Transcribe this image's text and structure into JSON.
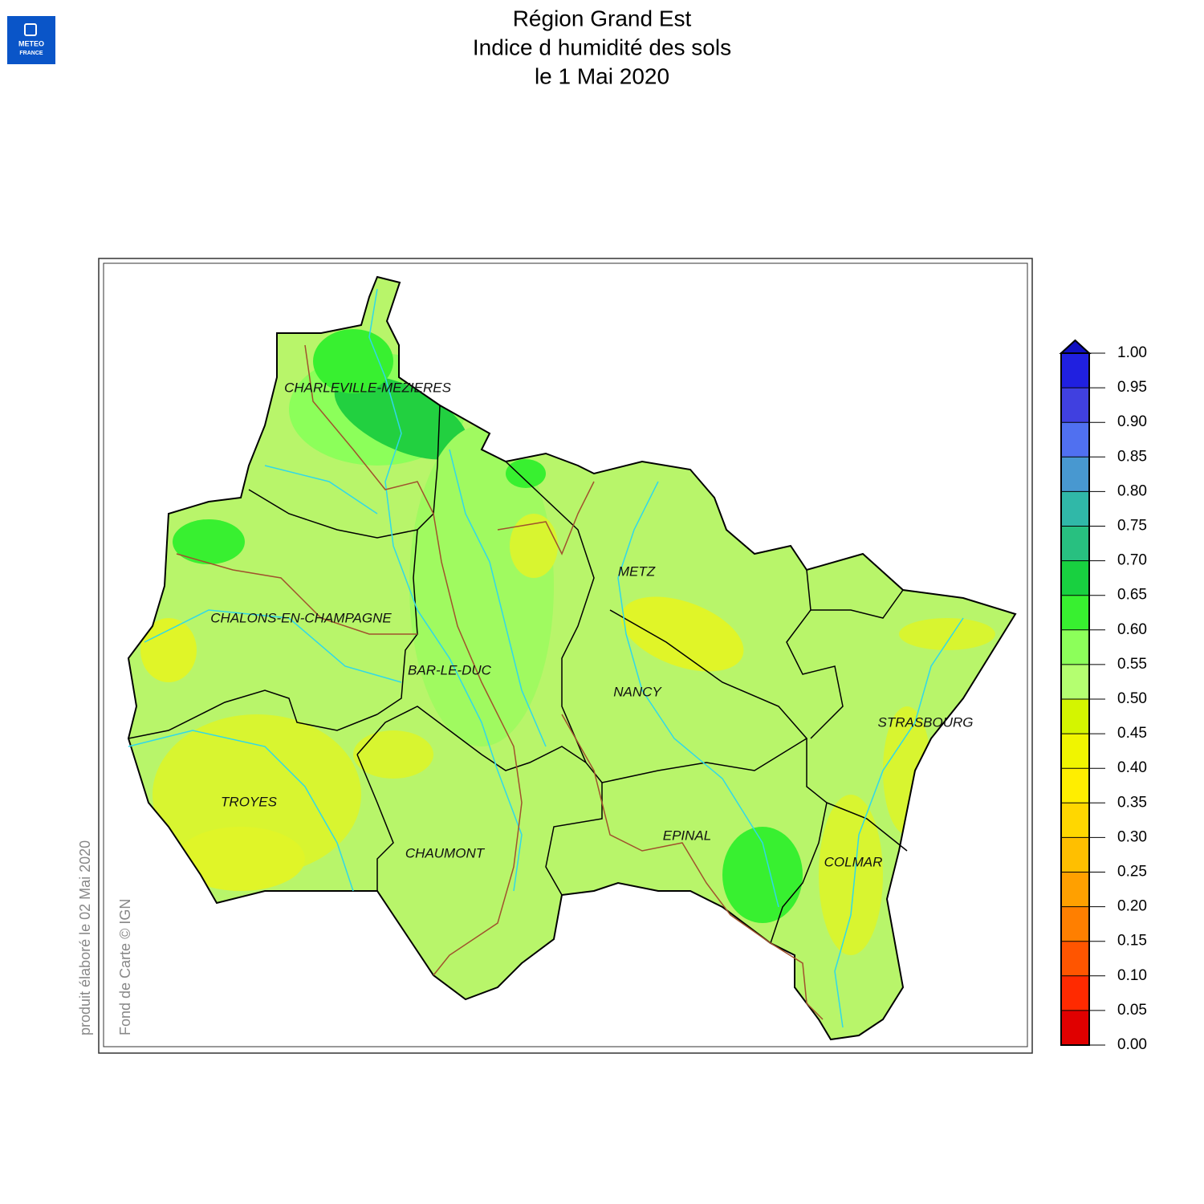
{
  "logo": [
    "METEO",
    "FRANCE"
  ],
  "header": {
    "title": [
      "Région Grand Est",
      "Indice d humidité des sols",
      "le 1 Mai 2020"
    ]
  },
  "map": {
    "cities": [
      "CHARLEVILLE-MEZIERES",
      "METZ",
      "CHALONS-EN-CHAMPAGNE",
      "BAR-LE-DUC",
      "NANCY",
      "STRASBOURG",
      "TROYES",
      "EPINAL",
      "CHAUMONT",
      "COLMAR"
    ]
  },
  "legend": {
    "ticks": [
      {
        "value": 0,
        "label": "0.00"
      },
      {
        "value": 0.05,
        "label": "0.05"
      },
      {
        "value": 0.1,
        "label": "0.10"
      },
      {
        "value": 0.15,
        "label": "0.15"
      },
      {
        "value": 0.2,
        "label": "0.20"
      },
      {
        "value": 0.25,
        "label": "0.25"
      },
      {
        "value": 0.3,
        "label": "0.30"
      },
      {
        "value": 0.35,
        "label": "0.35"
      },
      {
        "value": 0.4,
        "label": "0.40"
      },
      {
        "value": 0.45,
        "label": "0.45"
      },
      {
        "value": 0.5,
        "label": "0.50"
      },
      {
        "value": 0.55,
        "label": "0.55"
      },
      {
        "value": 0.6,
        "label": "0.60"
      },
      {
        "value": 0.65,
        "label": "0.65"
      },
      {
        "value": 0.7,
        "label": "0.70"
      },
      {
        "value": 0.75,
        "label": "0.75"
      },
      {
        "value": 0.8,
        "label": "0.80"
      },
      {
        "value": 0.85,
        "label": "0.85"
      },
      {
        "value": 0.9,
        "label": "0.90"
      },
      {
        "value": 0.95,
        "label": "0.95"
      },
      {
        "value": 1,
        "label": "1.00"
      }
    ],
    "colors": [
      "#e00000",
      "#ff2a00",
      "#ff5500",
      "#ff7f00",
      "#ffa000",
      "#ffbf00",
      "#ffd700",
      "#ffee00",
      "#f0f500",
      "#d4f500",
      "#b4ff70",
      "#8cff5a",
      "#38f030",
      "#18d040",
      "#28c080",
      "#30b8a8",
      "#4898d0",
      "#5070f0",
      "#4040e0",
      "#2020e0"
    ],
    "over_color": "#1010c0"
  },
  "credits": {
    "produced": "produit élaboré le 02 Mai 2020",
    "basemap": "Fond de Carte © IGN"
  }
}
